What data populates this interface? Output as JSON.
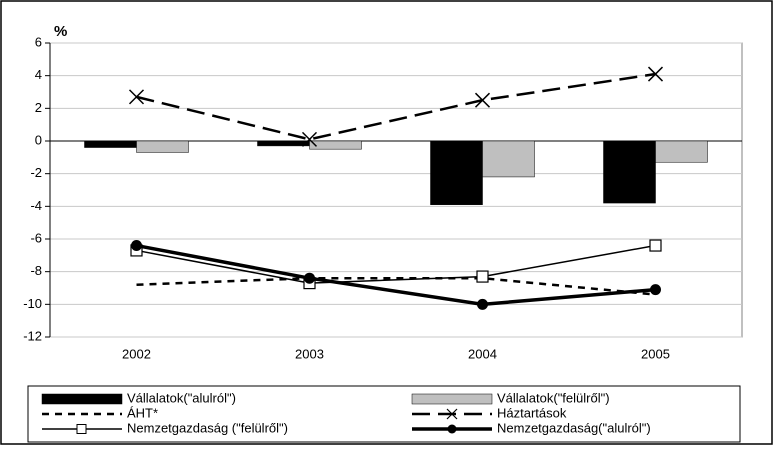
{
  "chart_data": {
    "type": "bar-line",
    "y_label": "%",
    "categories": [
      "2002",
      "2003",
      "2004",
      "2005"
    ],
    "ylim": [
      -12,
      6
    ],
    "yticks": [
      -12,
      -10,
      -8,
      -6,
      -4,
      -2,
      0,
      2,
      4,
      6
    ],
    "grid": true,
    "series": [
      {
        "name": "Vállalatok(\"alulról\")",
        "type": "bar",
        "color": "#000000",
        "values": [
          -0.4,
          -0.3,
          -3.9,
          -3.8
        ]
      },
      {
        "name": "Vállalatok(\"felülről\")",
        "type": "bar",
        "color": "#bfbfbf",
        "values": [
          -0.7,
          -0.5,
          -2.2,
          -1.3
        ]
      },
      {
        "name": "ÁHT*",
        "type": "line",
        "color": "#000000",
        "dash": "short",
        "width": 2.5,
        "marker": "none",
        "values": [
          -8.8,
          -8.4,
          -8.4,
          -9.4
        ]
      },
      {
        "name": "Háztartások",
        "type": "line",
        "color": "#000000",
        "dash": "long",
        "width": 2.5,
        "marker": "x",
        "values": [
          2.7,
          0.1,
          2.5,
          4.1
        ]
      },
      {
        "name": "Nemzetgazdaság (\"felülről\")",
        "type": "line",
        "color": "#000000",
        "dash": "solid",
        "width": 1.5,
        "marker": "square",
        "values": [
          -6.7,
          -8.7,
          -8.3,
          -6.4
        ]
      },
      {
        "name": "Nemzetgazdaság(\"alulról\")",
        "type": "line",
        "color": "#000000",
        "dash": "solid",
        "width": 3.5,
        "marker": "circle",
        "values": [
          -6.4,
          -8.4,
          -10.0,
          -9.1
        ]
      }
    ]
  }
}
